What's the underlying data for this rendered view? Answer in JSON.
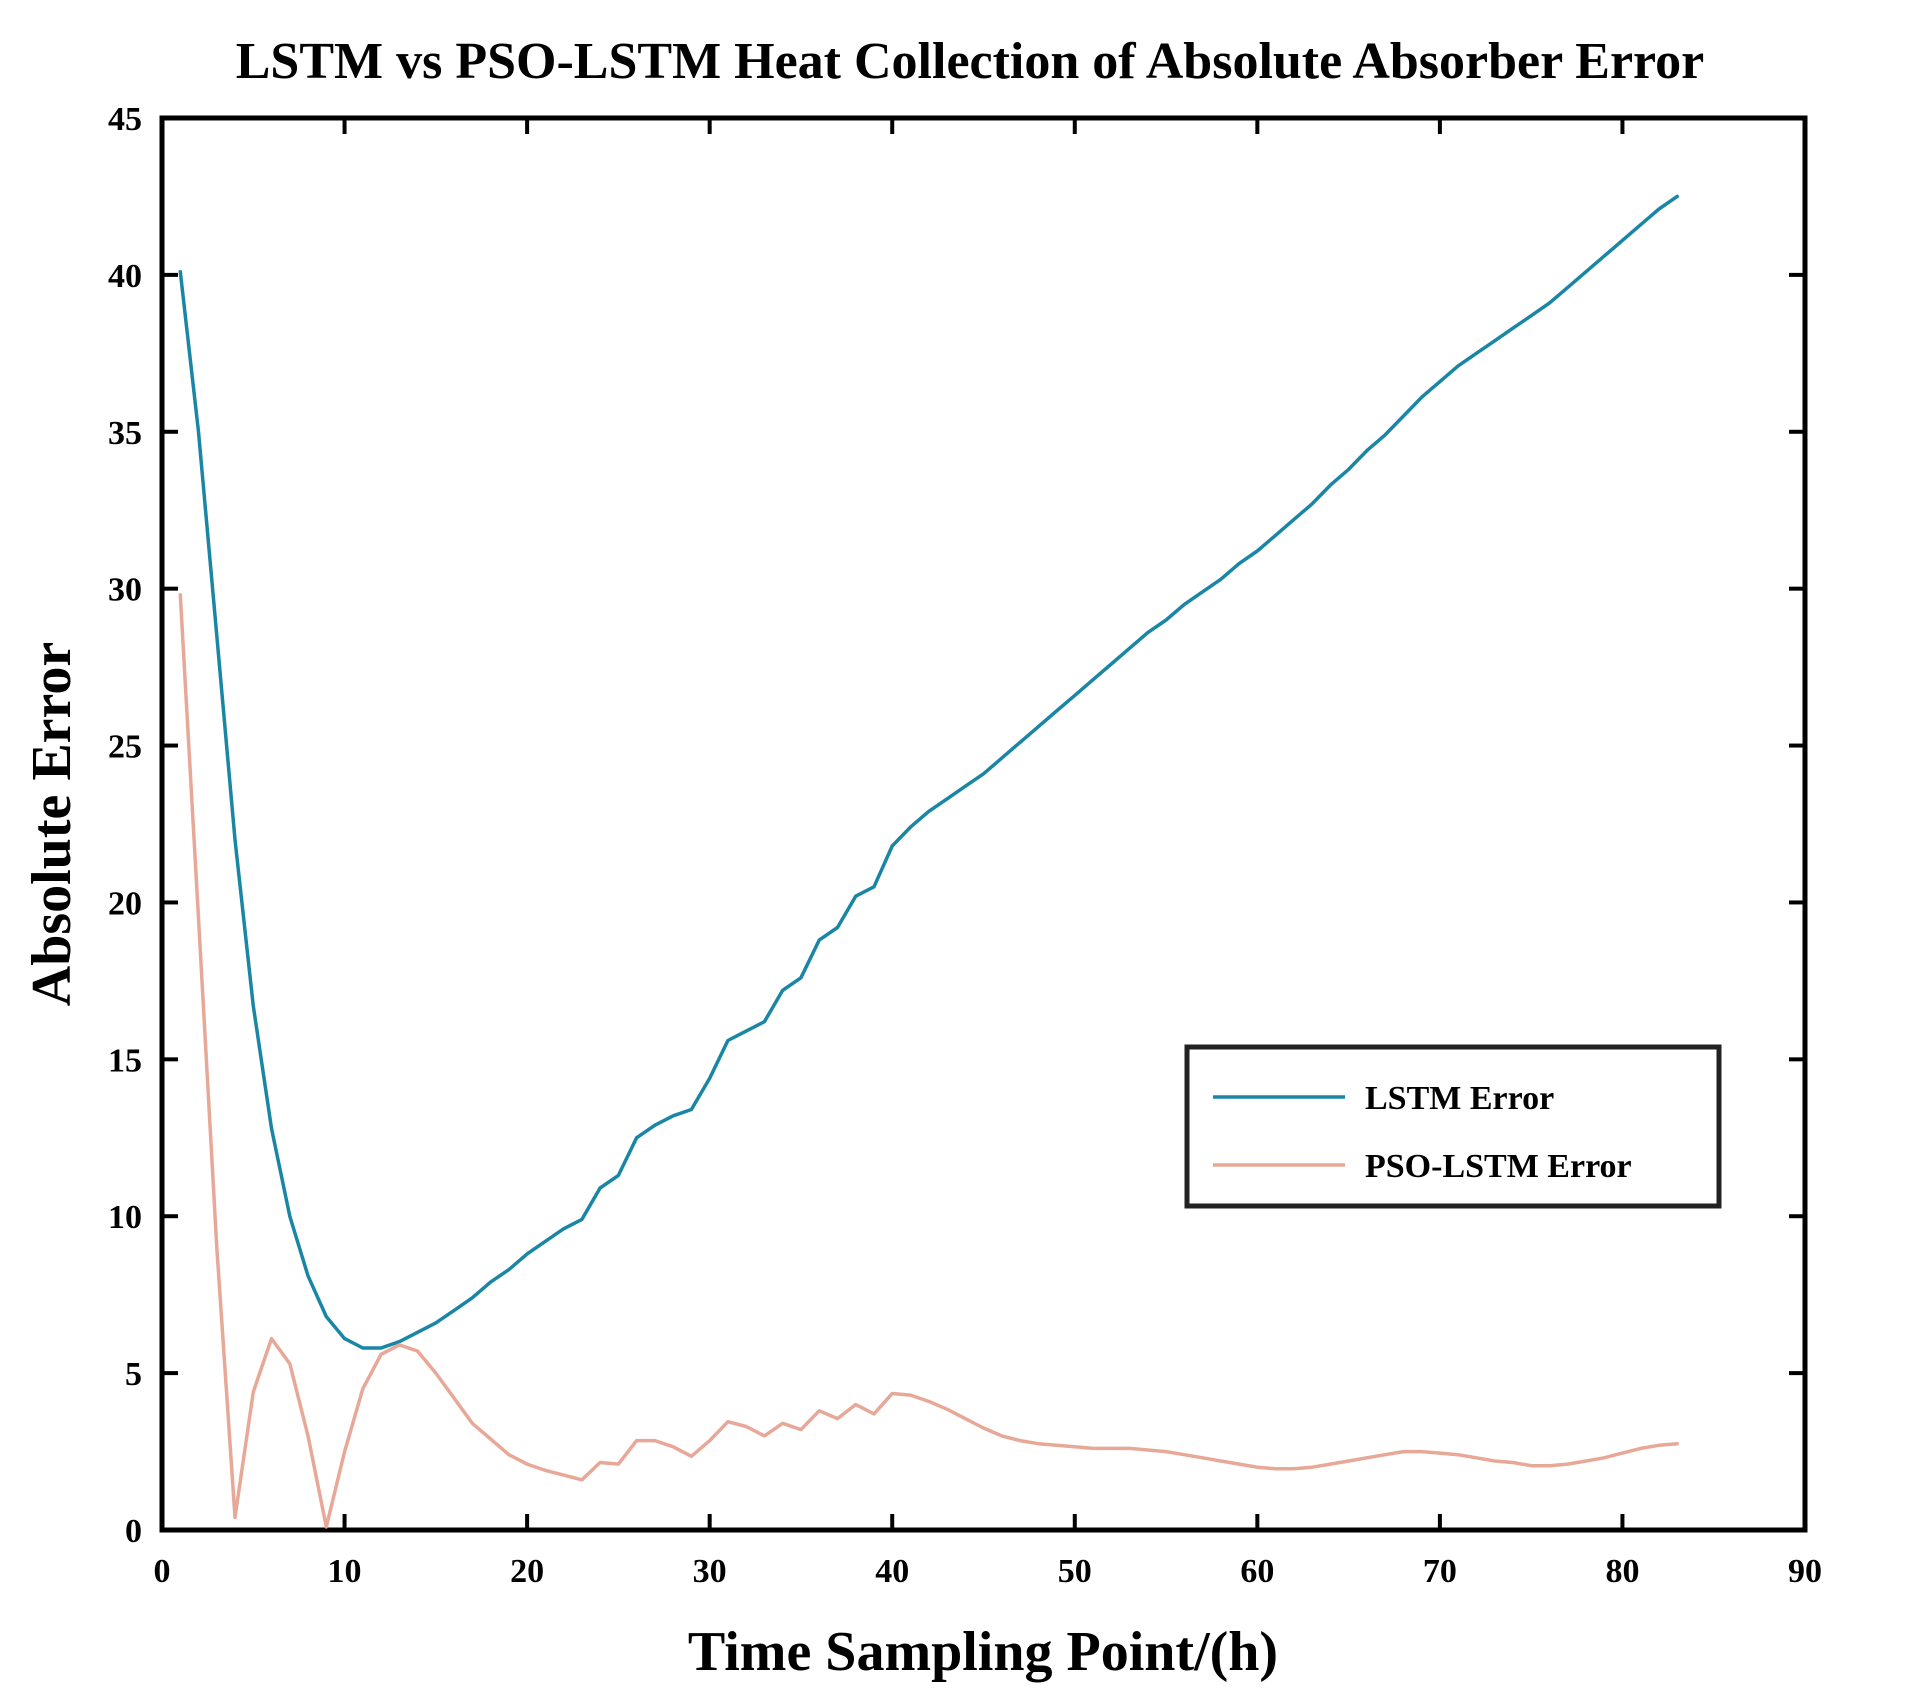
{
  "chart_data": {
    "type": "line",
    "title": "LSTM vs PSO-LSTM Heat Collection of Absolute Absorber Error",
    "xlabel": "Time Sampling Point/(h)",
    "ylabel": "Absolute Error",
    "xlim": [
      0,
      90
    ],
    "ylim": [
      0,
      45
    ],
    "xticks": [
      0,
      10,
      20,
      30,
      40,
      50,
      60,
      70,
      80,
      90
    ],
    "yticks": [
      0,
      5,
      10,
      15,
      20,
      25,
      30,
      35,
      40,
      45
    ],
    "grid": false,
    "legend_position": "center-right",
    "series": [
      {
        "name": "LSTM Error",
        "color": "#1a86a5",
        "x": [
          1,
          2,
          3,
          4,
          5,
          6,
          7,
          8,
          9,
          10,
          11,
          12,
          13,
          14,
          15,
          16,
          17,
          18,
          19,
          20,
          21,
          22,
          23,
          24,
          25,
          26,
          27,
          28,
          29,
          30,
          31,
          32,
          33,
          34,
          35,
          36,
          37,
          38,
          39,
          40,
          41,
          42,
          43,
          44,
          45,
          46,
          47,
          48,
          49,
          50,
          51,
          52,
          53,
          54,
          55,
          56,
          57,
          58,
          59,
          60,
          61,
          62,
          63,
          64,
          65,
          66,
          67,
          68,
          69,
          70,
          71,
          72,
          73,
          74,
          75,
          76,
          77,
          78,
          79,
          80,
          81,
          82,
          83
        ],
        "values": [
          40.1,
          35.0,
          28.5,
          22.0,
          16.7,
          12.8,
          10.0,
          8.1,
          6.8,
          6.1,
          5.8,
          5.8,
          6.0,
          6.3,
          6.6,
          7.0,
          7.4,
          7.9,
          8.3,
          8.8,
          9.2,
          9.6,
          9.9,
          10.9,
          11.3,
          12.5,
          12.9,
          13.2,
          13.4,
          14.4,
          15.6,
          15.9,
          16.2,
          17.2,
          17.6,
          18.8,
          19.2,
          20.2,
          20.5,
          21.8,
          22.4,
          22.9,
          23.3,
          23.7,
          24.1,
          24.6,
          25.1,
          25.6,
          26.1,
          26.6,
          27.1,
          27.6,
          28.1,
          28.6,
          29.0,
          29.5,
          29.9,
          30.3,
          30.8,
          31.2,
          31.7,
          32.2,
          32.7,
          33.3,
          33.8,
          34.4,
          34.9,
          35.5,
          36.1,
          36.6,
          37.1,
          37.5,
          37.9,
          38.3,
          38.7,
          39.1,
          39.6,
          40.1,
          40.6,
          41.1,
          41.6,
          42.1,
          42.5
        ]
      },
      {
        "name": "PSO-LSTM Error",
        "color": "#e8a898",
        "x": [
          1,
          2,
          3,
          4,
          5,
          6,
          7,
          8,
          9,
          10,
          11,
          12,
          13,
          14,
          15,
          16,
          17,
          18,
          19,
          20,
          21,
          22,
          23,
          24,
          25,
          26,
          27,
          28,
          29,
          30,
          31,
          32,
          33,
          34,
          35,
          36,
          37,
          38,
          39,
          40,
          41,
          42,
          43,
          44,
          45,
          46,
          47,
          48,
          49,
          50,
          51,
          52,
          53,
          54,
          55,
          56,
          57,
          58,
          59,
          60,
          61,
          62,
          63,
          64,
          65,
          66,
          67,
          68,
          69,
          70,
          71,
          72,
          73,
          74,
          75,
          76,
          77,
          78,
          79,
          80,
          81,
          82,
          83
        ],
        "values": [
          29.8,
          19.5,
          9.0,
          0.4,
          4.4,
          6.1,
          5.3,
          3.0,
          0.1,
          2.5,
          4.5,
          5.6,
          5.9,
          5.7,
          5.0,
          4.2,
          3.4,
          2.9,
          2.4,
          2.1,
          1.9,
          1.75,
          1.6,
          2.15,
          2.1,
          2.85,
          2.85,
          2.65,
          2.35,
          2.85,
          3.45,
          3.3,
          3.0,
          3.4,
          3.2,
          3.8,
          3.55,
          4.0,
          3.7,
          4.35,
          4.3,
          4.1,
          3.85,
          3.55,
          3.25,
          3.0,
          2.85,
          2.75,
          2.7,
          2.65,
          2.6,
          2.6,
          2.6,
          2.55,
          2.5,
          2.4,
          2.3,
          2.2,
          2.1,
          2.0,
          1.95,
          1.95,
          2.0,
          2.1,
          2.2,
          2.3,
          2.4,
          2.5,
          2.5,
          2.45,
          2.4,
          2.3,
          2.2,
          2.15,
          2.05,
          2.05,
          2.1,
          2.2,
          2.3,
          2.45,
          2.6,
          2.7,
          2.75
        ]
      }
    ]
  }
}
